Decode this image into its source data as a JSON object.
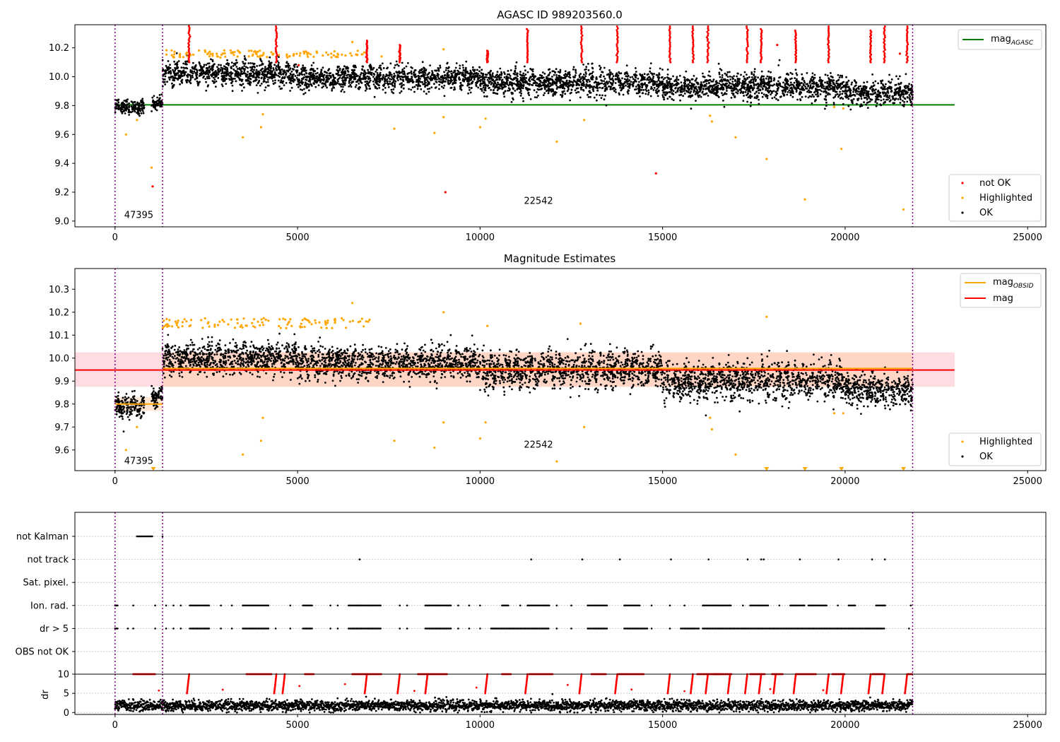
{
  "chart_data": [
    {
      "type": "scatter",
      "title": "AGASC ID 989203560.0",
      "xlabel": "",
      "ylabel": "",
      "xlim": [
        -1100,
        25500
      ],
      "ylim": [
        8.96,
        10.36
      ],
      "xticks": [
        0,
        5000,
        10000,
        15000,
        20000,
        25000
      ],
      "yticks": [
        9.0,
        9.2,
        9.4,
        9.6,
        9.8,
        10.0,
        10.2
      ],
      "vlines": [
        0,
        1300,
        21850
      ],
      "annotations": [
        {
          "text": "47395",
          "x": 650,
          "y": 9.02
        },
        {
          "text": "22542",
          "x": 11600,
          "y": 9.12
        }
      ],
      "hlines": [
        {
          "name": "mag_AGASC",
          "y": 9.805,
          "x0": 0,
          "x1": 23000,
          "color": "#008000"
        }
      ],
      "series": [
        {
          "name": "not OK",
          "color": "#ff0000",
          "runs": [
            [
              2030,
              10.35
            ],
            [
              4420,
              10.36
            ],
            [
              6900,
              10.25
            ],
            [
              7800,
              10.22
            ],
            [
              10200,
              10.18
            ],
            [
              11300,
              10.33
            ],
            [
              12780,
              10.36
            ],
            [
              13760,
              10.36
            ],
            [
              15200,
              10.36
            ],
            [
              15830,
              10.36
            ],
            [
              16240,
              10.36
            ],
            [
              17320,
              10.36
            ],
            [
              17700,
              10.33
            ],
            [
              18650,
              10.32
            ],
            [
              19550,
              10.36
            ],
            [
              20700,
              10.32
            ],
            [
              21080,
              10.36
            ],
            [
              21700,
              10.36
            ]
          ],
          "points": [
            [
              1030,
              9.24
            ],
            [
              9050,
              9.2
            ],
            [
              14820,
              9.33
            ],
            [
              5030,
              10.08
            ],
            [
              18140,
              10.22
            ],
            [
              21500,
              10.16
            ]
          ]
        },
        {
          "name": "Highlighted",
          "color": "#ffa500",
          "band": [
            1300,
            7000,
            10.13,
            10.22
          ],
          "points": [
            [
              600,
              9.7
            ],
            [
              1000,
              9.37
            ],
            [
              300,
              9.6
            ],
            [
              3500,
              9.58
            ],
            [
              4000,
              9.65
            ],
            [
              4050,
              9.74
            ],
            [
              7650,
              9.64
            ],
            [
              8750,
              9.61
            ],
            [
              9000,
              9.72
            ],
            [
              10000,
              9.65
            ],
            [
              10150,
              9.71
            ],
            [
              12100,
              9.55
            ],
            [
              12850,
              9.7
            ],
            [
              16300,
              9.73
            ],
            [
              16350,
              9.69
            ],
            [
              17000,
              9.58
            ],
            [
              17850,
              9.43
            ],
            [
              18900,
              9.15
            ],
            [
              19700,
              9.79
            ],
            [
              19950,
              9.78
            ],
            [
              19900,
              9.5
            ],
            [
              21600,
              9.08
            ],
            [
              9000,
              10.19
            ],
            [
              6500,
              10.24
            ],
            [
              7300,
              10.14
            ]
          ]
        },
        {
          "name": "OK",
          "color": "#000000",
          "segments": [
            [
              0,
              800,
              9.79,
              0.07
            ],
            [
              1000,
              1300,
              9.82,
              0.06
            ],
            [
              1300,
              5000,
              10.02,
              0.12
            ],
            [
              5000,
              10000,
              9.99,
              0.12
            ],
            [
              10000,
              15000,
              9.96,
              0.13
            ],
            [
              15000,
              20000,
              9.93,
              0.13
            ],
            [
              20000,
              21850,
              9.89,
              0.12
            ]
          ]
        }
      ],
      "legend": [
        {
          "label": "mag",
          "sub": "AGASC",
          "loc": "upper right"
        },
        {
          "label": "not OK",
          "loc": "lower right"
        },
        {
          "label": "Highlighted",
          "loc": "lower right"
        },
        {
          "label": "OK",
          "loc": "lower right"
        }
      ]
    },
    {
      "type": "scatter",
      "title": "Magnitude Estimates",
      "xlabel": "",
      "ylabel": "",
      "xlim": [
        -1100,
        25500
      ],
      "ylim": [
        9.51,
        10.39
      ],
      "xticks": [
        0,
        5000,
        10000,
        15000,
        20000,
        25000
      ],
      "yticks": [
        9.6,
        9.7,
        9.8,
        9.9,
        10.0,
        10.1,
        10.2,
        10.3
      ],
      "vlines": [
        0,
        1300,
        21850
      ],
      "annotations": [
        {
          "text": "47395",
          "x": 650,
          "y": 9.54
        },
        {
          "text": "22542",
          "x": 11600,
          "y": 9.61
        }
      ],
      "bands": [
        {
          "name": "mag",
          "x0": -1100,
          "x1": 23000,
          "y0": 9.875,
          "y1": 10.025,
          "color": "#ffc0c8"
        },
        {
          "name": "mag_OBSID",
          "x0": 1300,
          "x1": 21850,
          "y0": 9.875,
          "y1": 10.025,
          "color": "#ffd0b0"
        },
        {
          "name": "mag_OBSID",
          "x0": 0,
          "x1": 1300,
          "y0": 9.77,
          "y1": 9.83,
          "color": "#ffd0b0"
        }
      ],
      "hlines": [
        {
          "name": "mag",
          "y": 9.948,
          "x0": -1100,
          "x1": 23000,
          "color": "#ff0000"
        },
        {
          "name": "mag_OBSID",
          "y": 9.955,
          "x0": 1300,
          "x1": 21850,
          "color": "#ffa500"
        },
        {
          "name": "mag_OBSID",
          "y": 9.8,
          "x0": 0,
          "x1": 1300,
          "color": "#ffa500"
        }
      ],
      "series": [
        {
          "name": "Highlighted",
          "color": "#ffa500",
          "band": [
            1300,
            7000,
            10.13,
            10.22
          ],
          "points": [
            [
              300,
              9.6
            ],
            [
              600,
              9.7
            ],
            [
              3500,
              9.58
            ],
            [
              4000,
              9.64
            ],
            [
              4050,
              9.74
            ],
            [
              7650,
              9.64
            ],
            [
              8750,
              9.61
            ],
            [
              9000,
              9.72
            ],
            [
              10000,
              9.65
            ],
            [
              10150,
              9.72
            ],
            [
              12100,
              9.55
            ],
            [
              12850,
              9.7
            ],
            [
              16300,
              9.74
            ],
            [
              16350,
              9.69
            ],
            [
              17000,
              9.58
            ],
            [
              19700,
              9.76
            ],
            [
              19950,
              9.76
            ],
            [
              9000,
              10.2
            ],
            [
              6500,
              10.24
            ],
            [
              17850,
              10.18
            ],
            [
              10200,
              10.14
            ],
            [
              12750,
              10.15
            ]
          ],
          "markers_at_bottom": [
            1050,
            17850,
            18900,
            19900,
            21600
          ]
        },
        {
          "name": "OK",
          "color": "#000000",
          "segments": [
            [
              0,
              800,
              9.79,
              0.07
            ],
            [
              1000,
              1300,
              9.83,
              0.06
            ],
            [
              1300,
              5000,
              10.0,
              0.1
            ],
            [
              5000,
              10000,
              9.98,
              0.1
            ],
            [
              10000,
              15000,
              9.95,
              0.11
            ],
            [
              15000,
              20000,
              9.9,
              0.12
            ],
            [
              20000,
              21850,
              9.86,
              0.1
            ]
          ]
        }
      ],
      "legend": [
        {
          "label": "mag",
          "sub": "OBSID",
          "loc": "upper right"
        },
        {
          "label": "mag",
          "loc": "upper right"
        },
        {
          "label": "Highlighted",
          "loc": "lower right"
        },
        {
          "label": "OK",
          "loc": "lower right"
        }
      ]
    },
    {
      "type": "scatter",
      "title": "",
      "xlim": [
        -1100,
        25500
      ],
      "yticklabels": [
        "not Kalman",
        "not track",
        "Sat. pixel.",
        "Ion. rad.",
        "dr > 5",
        "OBS not OK"
      ],
      "vlines": [
        0,
        1300,
        21850
      ],
      "flags": [
        {
          "label": "not Kalman",
          "ranges": [
            [
              600,
              1050
            ]
          ],
          "points": [
            1300
          ]
        },
        {
          "label": "not track",
          "ranges": [],
          "points": [
            6700,
            11400,
            12800,
            13830,
            15230,
            16260,
            17330,
            17700,
            17770,
            18760,
            19820,
            20740,
            21090
          ]
        },
        {
          "label": "Sat. pixel.",
          "ranges": [],
          "points": []
        },
        {
          "label": "Ion. rad.",
          "ranges": [
            [
              0,
              100
            ],
            [
              2050,
              2600
            ],
            [
              3500,
              4200
            ],
            [
              5150,
              5400
            ],
            [
              6400,
              7300
            ],
            [
              8500,
              9200
            ],
            [
              10600,
              10800
            ],
            [
              11300,
              11900
            ],
            [
              12950,
              13500
            ],
            [
              13950,
              14400
            ],
            [
              16100,
              16900
            ],
            [
              17400,
              17900
            ],
            [
              18500,
              18900
            ],
            [
              19000,
              19500
            ],
            [
              20100,
              20300
            ],
            [
              20850,
              21100
            ]
          ],
          "points": [
            500,
            1100,
            1400,
            1600,
            1800,
            2900,
            3200,
            4800,
            5900,
            6100,
            7800,
            8000,
            9400,
            9700,
            10000,
            11100,
            12100,
            12500,
            14700,
            15200,
            15600,
            17200,
            18200,
            19800,
            21800
          ]
        },
        {
          "label": "dr > 5",
          "ranges": [
            [
              0,
              80
            ],
            [
              2050,
              2600
            ],
            [
              3500,
              4200
            ],
            [
              5150,
              5400
            ],
            [
              6400,
              7300
            ],
            [
              8500,
              9200
            ],
            [
              10300,
              11900
            ],
            [
              12950,
              13500
            ],
            [
              13950,
              14600
            ],
            [
              15500,
              16000
            ],
            [
              16100,
              21100
            ]
          ],
          "points": [
            350,
            500,
            1100,
            1400,
            1600,
            1800,
            2900,
            3200,
            4400,
            4800,
            5900,
            6100,
            7800,
            8000,
            9400,
            9700,
            10000,
            12100,
            12500,
            14700,
            15200,
            21750
          ]
        },
        {
          "label": "OBS not OK",
          "ranges": [],
          "points": []
        }
      ]
    },
    {
      "type": "scatter",
      "title": "",
      "xlabel": "",
      "ylabel": "dr",
      "xlim": [
        -1100,
        25500
      ],
      "ylim": [
        -0.5,
        10
      ],
      "xticks": [
        0,
        5000,
        10000,
        15000,
        20000,
        25000
      ],
      "yticks": [
        0,
        5,
        10
      ],
      "vlines": [
        0,
        1300,
        21850
      ],
      "series": [
        {
          "name": "OK",
          "color": "#000000",
          "baseline": 1.8,
          "spread": 1.4,
          "x0": 0,
          "x1": 21850
        },
        {
          "name": "not OK",
          "color": "#ff0000",
          "spikes": [
            2030,
            4420,
            4650,
            6900,
            7800,
            8560,
            10200,
            11300,
            12780,
            13760,
            15200,
            15830,
            16240,
            16850,
            17320,
            17700,
            18100,
            18650,
            19550,
            19950,
            20700,
            21080,
            21700
          ],
          "plateaus": [
            [
              500,
              1100
            ],
            [
              3600,
              4300
            ],
            [
              5200,
              5450
            ],
            [
              6500,
              7300
            ],
            [
              8300,
              9100
            ],
            [
              10600,
              10850
            ],
            [
              11350,
              12000
            ],
            [
              13050,
              13450
            ],
            [
              13800,
              14500
            ],
            [
              15950,
              16600
            ],
            [
              16400,
              16900
            ],
            [
              17400,
              17800
            ],
            [
              18000,
              18300
            ],
            [
              18650,
              19200
            ],
            [
              19650,
              20000
            ],
            [
              20750,
              21050
            ],
            [
              21720,
              21850
            ]
          ]
        }
      ]
    }
  ]
}
